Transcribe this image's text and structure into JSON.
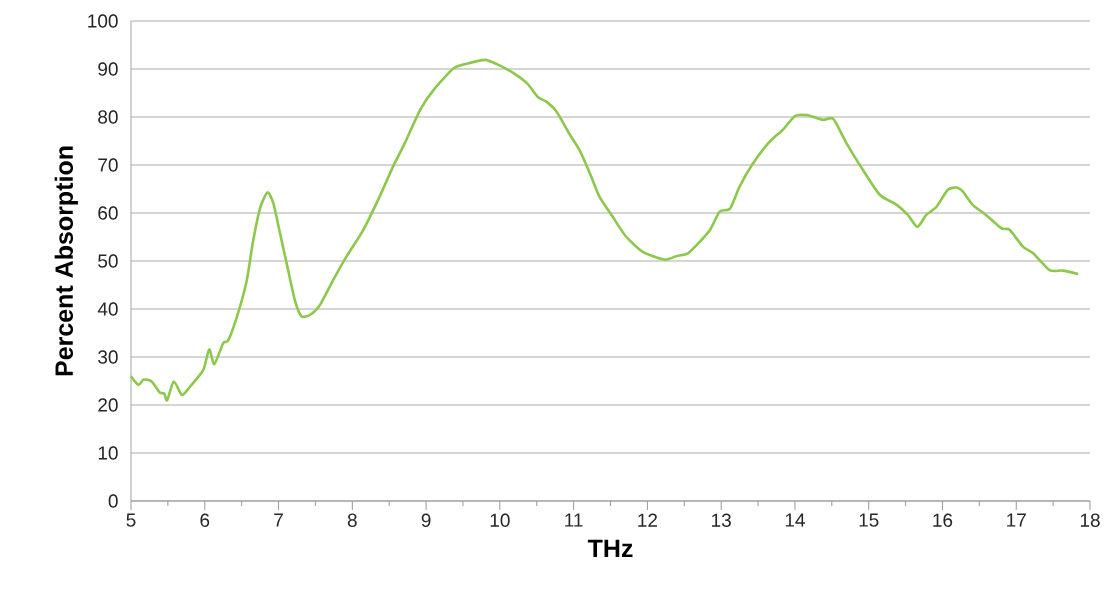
{
  "chart_data": {
    "type": "line",
    "xlabel": "THz",
    "ylabel": "Percent Absorption",
    "series": [
      {
        "color": "#8cc84b",
        "x": [
          5.0,
          5.1,
          5.17,
          5.28,
          5.39,
          5.45,
          5.49,
          5.58,
          5.69,
          5.8,
          5.98,
          6.06,
          6.13,
          6.25,
          6.32,
          6.45,
          6.57,
          6.65,
          6.75,
          6.85,
          6.93,
          7.01,
          7.11,
          7.22,
          7.31,
          7.43,
          7.56,
          7.74,
          7.92,
          8.15,
          8.37,
          8.55,
          8.71,
          8.92,
          9.1,
          9.37,
          9.55,
          9.8,
          9.96,
          10.19,
          10.37,
          10.52,
          10.63,
          10.77,
          10.95,
          11.08,
          11.22,
          11.35,
          11.53,
          11.71,
          11.94,
          12.23,
          12.39,
          12.55,
          12.71,
          12.85,
          12.98,
          13.12,
          13.25,
          13.43,
          13.66,
          13.84,
          14.0,
          14.16,
          14.38,
          14.52,
          14.7,
          14.92,
          15.15,
          15.38,
          15.53,
          15.66,
          15.78,
          15.92,
          16.07,
          16.19,
          16.28,
          16.41,
          16.59,
          16.8,
          16.91,
          17.09,
          17.23,
          17.45,
          17.63,
          17.84
        ],
        "values": [
          26,
          24.2,
          25.3,
          24.9,
          22.6,
          22.4,
          21,
          24.9,
          22.1,
          23.8,
          27.3,
          31.6,
          28.5,
          32.9,
          33.5,
          39.1,
          46,
          53.7,
          61,
          64.3,
          62,
          56.5,
          49.5,
          41.9,
          38.5,
          38.8,
          40.8,
          46,
          50.9,
          56.5,
          63.4,
          69.6,
          74.5,
          81.5,
          85.6,
          90.1,
          91.1,
          91.9,
          91,
          89.1,
          87,
          84.1,
          83.2,
          81.1,
          76.3,
          73.1,
          68.3,
          63.4,
          59.2,
          55.1,
          51.9,
          50.3,
          51,
          51.6,
          54,
          56.5,
          60.3,
          60.9,
          65.5,
          70.3,
          74.9,
          77.4,
          80.2,
          80.4,
          79.4,
          79.6,
          74.5,
          69,
          63.8,
          61.7,
          59.6,
          57.1,
          59.6,
          61.3,
          64.8,
          65.3,
          64.4,
          61.7,
          59.6,
          56.8,
          56.5,
          53,
          51.6,
          48.1,
          48,
          47.3
        ]
      }
    ],
    "xlim": [
      5,
      18
    ],
    "xticks": [
      5,
      {
        "value": 5.5,
        "label": null
      },
      6,
      {
        "value": 6.5,
        "label": null
      },
      7,
      {
        "value": 7.5,
        "label": null
      },
      8,
      {
        "value": 8.5,
        "label": null
      },
      9,
      {
        "value": 9.5,
        "label": null
      },
      10,
      {
        "value": 10.5,
        "label": null
      },
      11,
      {
        "value": 11.5,
        "label": null
      },
      12,
      {
        "value": 12.5,
        "label": null
      },
      13,
      {
        "value": 13.5,
        "label": null
      },
      14,
      {
        "value": 14.5,
        "label": null
      },
      15,
      {
        "value": 15.5,
        "label": null
      },
      16,
      {
        "value": 16.5,
        "label": null
      },
      17,
      {
        "value": 17.5,
        "label": null
      },
      18
    ],
    "ylim": [
      0,
      100
    ],
    "yticks": [
      0,
      10,
      20,
      30,
      40,
      50,
      60,
      70,
      80,
      90,
      100
    ],
    "grid": "y",
    "marker": "none",
    "line_style": "solid"
  }
}
